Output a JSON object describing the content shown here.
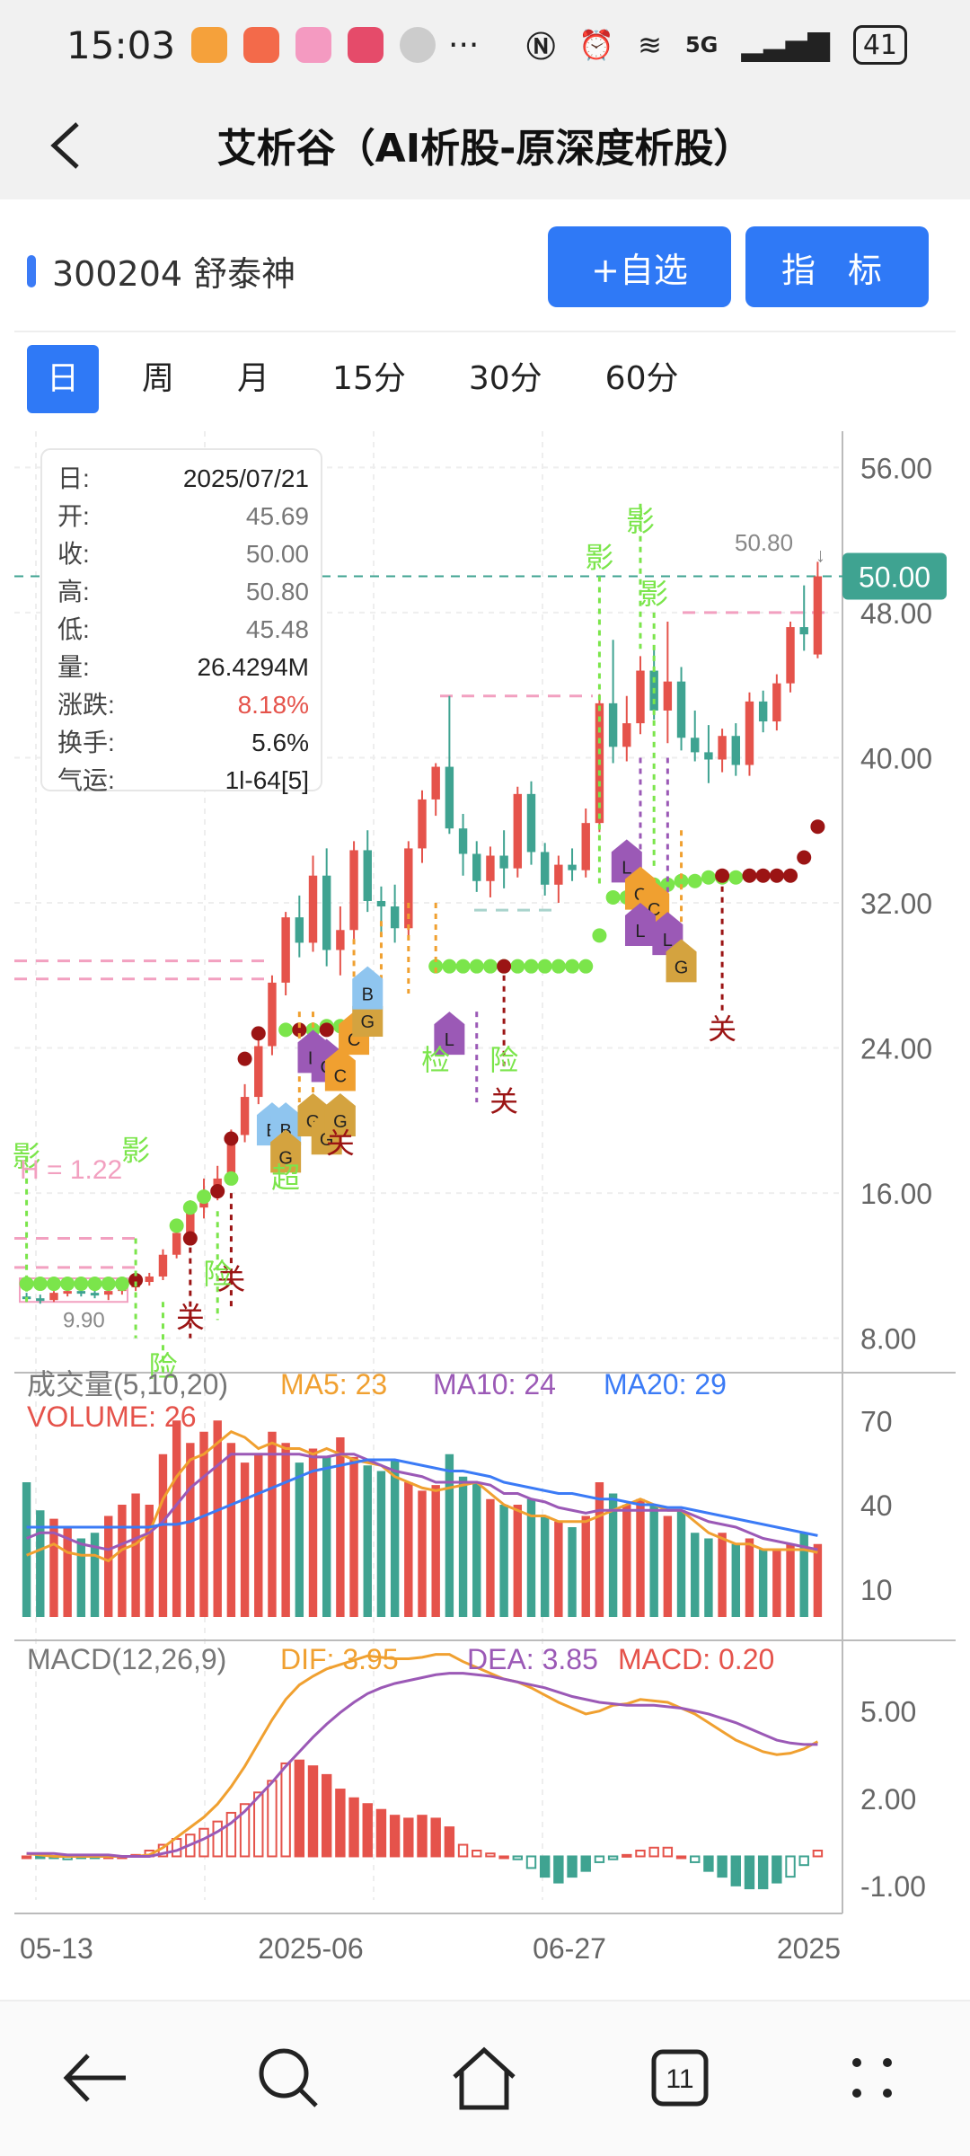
{
  "status_bar": {
    "time": "15:03",
    "network": "5G",
    "battery": "41",
    "more_indicator": "···",
    "icons": [
      "nfc-icon",
      "alarm-icon",
      "wifi-icon",
      "signal-icon"
    ]
  },
  "header": {
    "title": "艾析谷（AI析股-原深度析股）"
  },
  "stock": {
    "code_name": "300204 舒泰神"
  },
  "buttons": {
    "add_watchlist": "+自选",
    "indicator": "指 标"
  },
  "period_tabs": [
    "日",
    "周",
    "月",
    "15分",
    "30分",
    "60分"
  ],
  "active_tab": 0,
  "info_box": {
    "rows": [
      {
        "label": "日:",
        "value": "2025/07/21"
      },
      {
        "label": "开:",
        "value": "45.69"
      },
      {
        "label": "收:",
        "value": "50.00"
      },
      {
        "label": "高:",
        "value": "50.80"
      },
      {
        "label": "低:",
        "value": "45.48"
      },
      {
        "label": "量:",
        "value": "26.4294M"
      },
      {
        "label": "涨跌:",
        "value": "8.18%"
      },
      {
        "label": "换手:",
        "value": "5.6%"
      },
      {
        "label": "气运:",
        "value": "1l-64[5]"
      }
    ]
  },
  "price_axis": [
    "56.00",
    "48.00",
    "40.00",
    "32.00",
    "24.00",
    "16.00",
    "8.00"
  ],
  "price_tag": "50.00",
  "high_label": "50.80",
  "h_label": "H = 1.22",
  "low_label": "9.90",
  "signal_texts": {
    "ying": "影",
    "guan": "关",
    "xian": "险",
    "chao": "超",
    "jian": "检"
  },
  "marker_letters": {
    "G": "G",
    "L": "L",
    "B": "B",
    "C": "C"
  },
  "volume": {
    "title": "成交量(5,10,20)",
    "ma5": "MA5: 23",
    "ma10": "MA10: 24",
    "ma20": "MA20: 29",
    "vol": "VOLUME: 26",
    "axis": [
      "70",
      "40",
      "10"
    ]
  },
  "macd": {
    "title": "MACD(12,26,9)",
    "dif": "DIF: 3.95",
    "dea": "DEA: 3.85",
    "macd": "MACD: 0.20",
    "axis": [
      "5.00",
      "2.00",
      "-1.00"
    ]
  },
  "date_axis": [
    "05-13",
    "2025-06",
    "06-27",
    "2025"
  ],
  "colors": {
    "up": "#e5534b",
    "down": "#3fa391",
    "accent": "#2f79f6",
    "ma5": "#f0a030",
    "ma10": "#9b59b6",
    "ma20": "#3b7bf6",
    "green_dot": "#7be54b",
    "dark_dot": "#9b1414"
  },
  "chart_data": {
    "type": "candlestick",
    "start_date": "2025-05-12",
    "candles": [
      [
        10.3,
        10.5,
        10.0,
        10.2
      ],
      [
        10.2,
        10.4,
        9.9,
        10.1
      ],
      [
        10.1,
        10.6,
        10.0,
        10.5
      ],
      [
        10.5,
        10.9,
        10.3,
        10.6
      ],
      [
        10.6,
        10.9,
        10.3,
        10.5
      ],
      [
        10.5,
        10.8,
        10.2,
        10.4
      ],
      [
        10.4,
        10.7,
        10.1,
        10.6
      ],
      [
        10.6,
        11.0,
        10.4,
        10.8
      ],
      [
        10.8,
        11.2,
        10.6,
        11.1
      ],
      [
        11.1,
        11.6,
        10.9,
        11.4
      ],
      [
        11.4,
        12.9,
        11.2,
        12.6
      ],
      [
        12.6,
        14.0,
        12.4,
        13.8
      ],
      [
        13.8,
        15.6,
        13.4,
        15.2
      ],
      [
        15.2,
        16.8,
        14.6,
        16.1
      ],
      [
        16.1,
        17.5,
        15.6,
        16.8
      ],
      [
        16.8,
        19.5,
        16.5,
        19.2
      ],
      [
        19.2,
        22.0,
        18.8,
        21.3
      ],
      [
        21.3,
        24.5,
        20.9,
        24.1
      ],
      [
        24.1,
        28.0,
        23.6,
        27.6
      ],
      [
        27.6,
        31.5,
        26.9,
        31.2
      ],
      [
        31.2,
        32.4,
        29.0,
        29.8
      ],
      [
        29.8,
        34.6,
        29.3,
        33.5
      ],
      [
        33.5,
        35.0,
        28.5,
        29.4
      ],
      [
        29.4,
        31.8,
        28.0,
        30.5
      ],
      [
        30.5,
        35.4,
        30.0,
        34.9
      ],
      [
        34.9,
        36.0,
        31.5,
        32.1
      ],
      [
        32.1,
        32.9,
        30.4,
        31.8
      ],
      [
        31.8,
        33.0,
        29.8,
        30.6
      ],
      [
        30.6,
        35.4,
        30.1,
        35.0
      ],
      [
        35.0,
        38.2,
        34.2,
        37.7
      ],
      [
        37.7,
        39.7,
        36.8,
        39.5
      ],
      [
        39.5,
        43.4,
        35.8,
        36.1
      ],
      [
        36.1,
        36.9,
        33.5,
        34.7
      ],
      [
        34.7,
        35.4,
        32.6,
        33.2
      ],
      [
        33.2,
        35.1,
        32.3,
        34.6
      ],
      [
        34.6,
        36.0,
        32.8,
        33.9
      ],
      [
        33.9,
        38.4,
        33.4,
        38.0
      ],
      [
        38.0,
        38.7,
        34.1,
        34.8
      ],
      [
        34.8,
        35.3,
        32.4,
        33.0
      ],
      [
        33.0,
        34.6,
        32.0,
        34.1
      ],
      [
        34.1,
        35.0,
        33.2,
        33.8
      ],
      [
        33.8,
        37.2,
        33.4,
        36.4
      ],
      [
        36.4,
        43.5,
        35.9,
        43.0
      ],
      [
        43.0,
        46.5,
        39.7,
        40.6
      ],
      [
        40.6,
        43.4,
        39.8,
        41.9
      ],
      [
        41.9,
        45.6,
        41.3,
        44.8
      ],
      [
        44.8,
        46.0,
        42.1,
        42.6
      ],
      [
        42.6,
        47.5,
        40.8,
        44.2
      ],
      [
        44.2,
        45.0,
        40.4,
        41.1
      ],
      [
        41.1,
        42.6,
        39.8,
        40.3
      ],
      [
        40.3,
        41.8,
        38.6,
        39.9
      ],
      [
        39.9,
        41.6,
        39.2,
        41.2
      ],
      [
        41.2,
        41.9,
        39.0,
        39.6
      ],
      [
        39.6,
        43.6,
        39.0,
        43.1
      ],
      [
        43.1,
        43.7,
        41.4,
        42.0
      ],
      [
        42.0,
        44.6,
        41.5,
        44.1
      ],
      [
        44.1,
        47.5,
        43.6,
        47.2
      ],
      [
        47.2,
        49.5,
        45.9,
        46.8
      ],
      [
        45.69,
        50.8,
        45.48,
        50.0
      ]
    ],
    "volume": [
      48,
      38,
      35,
      32,
      28,
      30,
      36,
      40,
      44,
      40,
      58,
      70,
      62,
      66,
      70,
      62,
      55,
      58,
      66,
      62,
      55,
      60,
      57,
      64,
      57,
      54,
      52,
      56,
      48,
      45,
      47,
      58,
      50,
      48,
      42,
      40,
      40,
      42,
      36,
      34,
      32,
      36,
      48,
      44,
      40,
      42,
      40,
      36,
      38,
      30,
      28,
      30,
      26,
      28,
      24,
      24,
      26,
      30,
      26
    ],
    "ma5": [
      22,
      24,
      26,
      23,
      22,
      22,
      20,
      24,
      26,
      30,
      42,
      50,
      56,
      58,
      62,
      66,
      64,
      60,
      62,
      60,
      60,
      58,
      60,
      58,
      56,
      55,
      54,
      50,
      48,
      46,
      45,
      46,
      47,
      48,
      44,
      40,
      38,
      36,
      36,
      34,
      34,
      34,
      36,
      38,
      40,
      42,
      40,
      38,
      38,
      34,
      30,
      28,
      26,
      26,
      24,
      24,
      24,
      24,
      23
    ],
    "ma10": [
      28,
      30,
      30,
      28,
      26,
      25,
      24,
      26,
      28,
      30,
      34,
      40,
      46,
      50,
      54,
      58,
      58,
      58,
      58,
      58,
      58,
      57,
      57,
      58,
      58,
      56,
      54,
      52,
      51,
      50,
      48,
      48,
      48,
      48,
      47,
      44,
      44,
      42,
      41,
      39,
      38,
      37,
      38,
      38,
      38,
      38,
      38,
      38,
      38,
      36,
      34,
      33,
      32,
      30,
      28,
      27,
      26,
      25,
      24
    ],
    "ma20": [
      32,
      32,
      32,
      32,
      32,
      32,
      32,
      32,
      32,
      32,
      33,
      33,
      34,
      36,
      38,
      40,
      42,
      44,
      46,
      48,
      50,
      52,
      53,
      54,
      55,
      56,
      56,
      56,
      55,
      54,
      53,
      52,
      52,
      51,
      50,
      48,
      47,
      46,
      45,
      44,
      44,
      43,
      42,
      42,
      41,
      40,
      40,
      39,
      39,
      38,
      37,
      36,
      35,
      34,
      33,
      32,
      31,
      30,
      29
    ],
    "dif": [
      0.1,
      0.05,
      0.0,
      0.0,
      0.0,
      0.0,
      0.0,
      0.0,
      0.0,
      0.05,
      0.3,
      0.65,
      1.0,
      1.35,
      1.8,
      2.4,
      3.1,
      3.9,
      4.7,
      5.4,
      5.9,
      6.2,
      6.45,
      6.6,
      6.75,
      6.9,
      6.85,
      6.8,
      6.8,
      6.85,
      6.95,
      6.95,
      6.7,
      6.5,
      6.3,
      6.1,
      6.0,
      5.8,
      5.55,
      5.3,
      5.1,
      4.9,
      5.0,
      5.2,
      5.25,
      5.4,
      5.35,
      5.3,
      5.1,
      4.9,
      4.6,
      4.3,
      4.0,
      3.8,
      3.6,
      3.5,
      3.55,
      3.7,
      3.95
    ],
    "dea": [
      0.1,
      0.1,
      0.1,
      0.05,
      0.05,
      0.05,
      0.05,
      0.0,
      0.0,
      0.0,
      0.1,
      0.2,
      0.4,
      0.6,
      0.85,
      1.15,
      1.55,
      2.05,
      2.55,
      3.1,
      3.6,
      4.1,
      4.55,
      4.95,
      5.3,
      5.6,
      5.8,
      5.95,
      6.05,
      6.15,
      6.25,
      6.3,
      6.3,
      6.25,
      6.2,
      6.1,
      6.0,
      5.9,
      5.8,
      5.65,
      5.5,
      5.4,
      5.3,
      5.25,
      5.2,
      5.2,
      5.2,
      5.15,
      5.1,
      5.0,
      4.9,
      4.75,
      4.6,
      4.4,
      4.2,
      4.0,
      3.9,
      3.85,
      3.85
    ],
    "macd_bar": [
      0.0,
      -0.05,
      -0.05,
      -0.1,
      -0.05,
      -0.05,
      0.0,
      0.0,
      0.05,
      0.2,
      0.4,
      0.6,
      0.75,
      0.95,
      1.2,
      1.5,
      1.8,
      2.2,
      2.6,
      3.2,
      3.3,
      3.1,
      2.8,
      2.3,
      2.0,
      1.8,
      1.6,
      1.4,
      1.3,
      1.4,
      1.3,
      1.0,
      0.4,
      0.2,
      0.1,
      0.0,
      -0.1,
      -0.4,
      -0.7,
      -0.9,
      -0.7,
      -0.5,
      -0.2,
      -0.1,
      0.05,
      0.2,
      0.3,
      0.3,
      0.0,
      -0.2,
      -0.5,
      -0.7,
      -1.0,
      -1.1,
      -1.1,
      -0.9,
      -0.7,
      -0.3,
      0.2
    ],
    "ylim_price": [
      6,
      58
    ],
    "ylim_volume": [
      0,
      80
    ],
    "ylim_macd": [
      -1.5,
      7.0
    ]
  }
}
